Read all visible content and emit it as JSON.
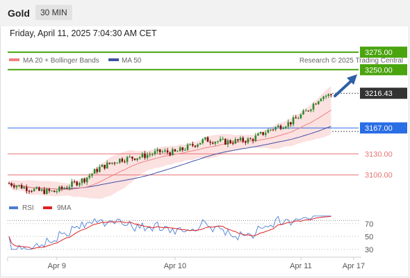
{
  "header": {
    "title": "Gold",
    "interval": "30 MIN"
  },
  "datetime": "Friday, April 11, 2025 7:04:30 AM CET",
  "legend": {
    "ma20": "MA 20 + Bollinger Bands",
    "ma50": "MA 50",
    "source": "Research © 2025 Trading Central"
  },
  "rsi_legend": {
    "rsi": "RSI",
    "ma": "9MA"
  },
  "colors": {
    "up": "#2c8a2c",
    "down": "#7a0d0d",
    "ma20": "#f08080",
    "ma50": "#3f51a5",
    "band": "#fbd7d7",
    "resistance": "#4aa40e",
    "last": "#333333",
    "pivot": "#2a6ee6",
    "support": "#e57373",
    "rsi": "#4a7dd6",
    "rsi_ma": "#e02020"
  },
  "chart_data": {
    "type": "candlestick",
    "ylim": [
      3060,
      3290
    ],
    "x_ticks": [
      {
        "label": "Apr 9",
        "index": 19
      },
      {
        "label": "Apr 10",
        "index": 66
      },
      {
        "label": "Apr 11",
        "index": 116
      },
      {
        "label": "Apr 17",
        "index": 137
      }
    ],
    "levels": [
      {
        "label": "3275.00",
        "value": 3275,
        "kind": "resistance"
      },
      {
        "label": "3250.00",
        "value": 3250,
        "kind": "resistance"
      },
      {
        "label": "3216.43",
        "value": 3216.43,
        "kind": "last"
      },
      {
        "label": "3167.00",
        "value": 3167,
        "kind": "pivot"
      },
      {
        "label": "3130.00",
        "value": 3130,
        "kind": "support"
      },
      {
        "label": "3100.00",
        "value": 3100,
        "kind": "support"
      }
    ],
    "rsi": {
      "ylim": [
        20,
        85
      ],
      "ticks": [
        70,
        50,
        30
      ]
    }
  }
}
